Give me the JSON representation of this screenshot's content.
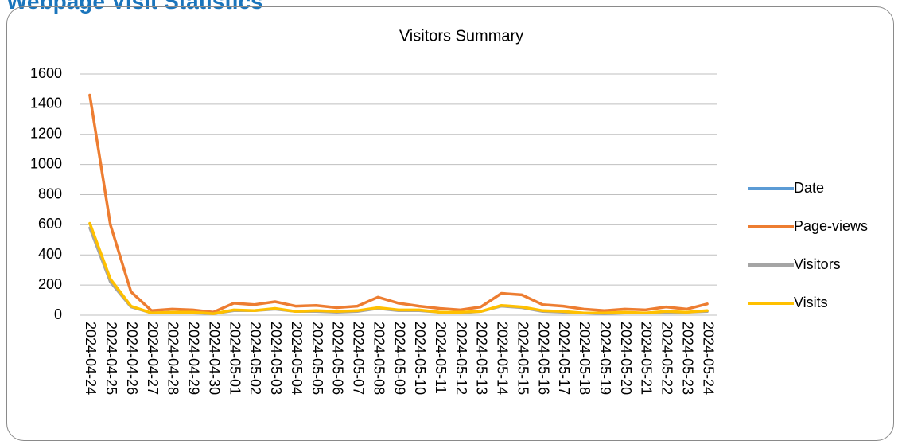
{
  "header": {
    "title": "Webpage Visit Statistics"
  },
  "chart_data": {
    "type": "line",
    "title": "Visitors Summary",
    "categories": [
      "2024-04-24",
      "2024-04-25",
      "2024-04-26",
      "2024-04-27",
      "2024-04-28",
      "2024-04-29",
      "2024-04-30",
      "2024-05-01",
      "2024-05-02",
      "2024-05-03",
      "2024-05-04",
      "2024-05-05",
      "2024-05-06",
      "2024-05-07",
      "2024-05-08",
      "2024-05-09",
      "2024-05-10",
      "2024-05-11",
      "2024-05-12",
      "2024-05-13",
      "2024-05-14",
      "2024-05-15",
      "2024-05-16",
      "2024-05-17",
      "2024-05-18",
      "2024-05-19",
      "2024-05-20",
      "2024-05-21",
      "2024-05-22",
      "2024-05-23",
      "2024-05-24"
    ],
    "series": [
      {
        "name": "Date",
        "color": "#5b9bd5",
        "values": [
          null,
          null,
          null,
          null,
          null,
          null,
          null,
          null,
          null,
          null,
          null,
          null,
          null,
          null,
          null,
          null,
          null,
          null,
          null,
          null,
          null,
          null,
          null,
          null,
          null,
          null,
          null,
          null,
          null,
          null,
          null
        ]
      },
      {
        "name": "Page-views",
        "color": "#ed7d31",
        "values": [
          1460,
          600,
          155,
          30,
          40,
          35,
          20,
          80,
          70,
          90,
          60,
          65,
          50,
          60,
          120,
          80,
          60,
          45,
          35,
          55,
          145,
          135,
          70,
          60,
          40,
          30,
          40,
          35,
          55,
          40,
          75
        ]
      },
      {
        "name": "Visitors",
        "color": "#a5a5a5",
        "values": [
          580,
          220,
          55,
          15,
          20,
          15,
          10,
          30,
          30,
          40,
          25,
          25,
          20,
          25,
          45,
          30,
          30,
          20,
          15,
          25,
          60,
          50,
          25,
          20,
          15,
          10,
          15,
          15,
          20,
          20,
          25
        ]
      },
      {
        "name": "Visits",
        "color": "#ffc000",
        "values": [
          610,
          240,
          60,
          15,
          20,
          20,
          10,
          35,
          30,
          45,
          25,
          30,
          25,
          30,
          50,
          35,
          35,
          20,
          20,
          25,
          65,
          55,
          30,
          25,
          15,
          15,
          20,
          15,
          25,
          20,
          30
        ]
      }
    ],
    "ylim": [
      0,
      1600
    ],
    "yticks": [
      0,
      200,
      400,
      600,
      800,
      1000,
      1200,
      1400,
      1600
    ],
    "grid": true,
    "legend": "right"
  }
}
